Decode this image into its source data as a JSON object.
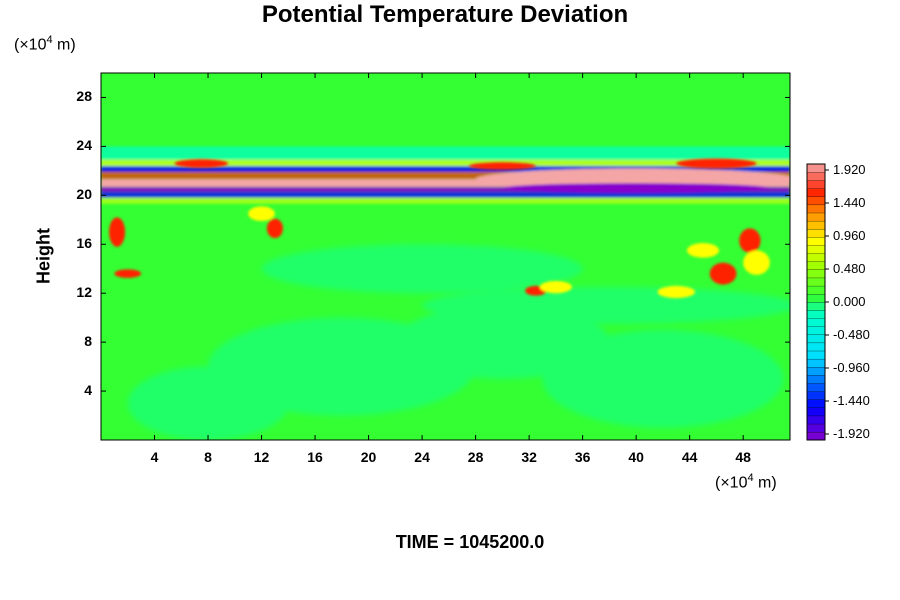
{
  "chart_data": {
    "type": "heatmap",
    "title": "Potential Temperature Deviation",
    "ylabel": "Height",
    "y_unit": {
      "prefix": "(×10",
      "exp": "4",
      "suffix": " m)"
    },
    "x_unit": {
      "prefix": "(×10",
      "exp": "4",
      "suffix": " m)"
    },
    "xlim": [
      0,
      51.5
    ],
    "ylim": [
      0,
      30
    ],
    "x_ticks": [
      4,
      8,
      12,
      16,
      20,
      24,
      28,
      32,
      36,
      40,
      44,
      48
    ],
    "y_ticks": [
      4,
      8,
      12,
      16,
      20,
      24,
      28
    ],
    "colorbar": {
      "min": -1.92,
      "max": 1.92,
      "tick_values": [
        1.92,
        1.44,
        0.96,
        0.48,
        0.0,
        -0.48,
        -0.96,
        -1.44,
        -1.92
      ],
      "tick_labels": [
        "1.920",
        "1.440",
        "0.960",
        "0.480",
        "0.000",
        "-0.480",
        "-0.960",
        "-1.440",
        "-1.920"
      ]
    },
    "footer": "TIME = 1045200.0"
  },
  "colors": {
    "pos_high": "#f4a5a5",
    "pos_mid": "#ff2200",
    "pos_low": "#ffff00",
    "zero": "#33ff33",
    "neg_low": "#00ffcc",
    "neg_mid": "#0000ff",
    "neg_high": "#8800cc"
  }
}
